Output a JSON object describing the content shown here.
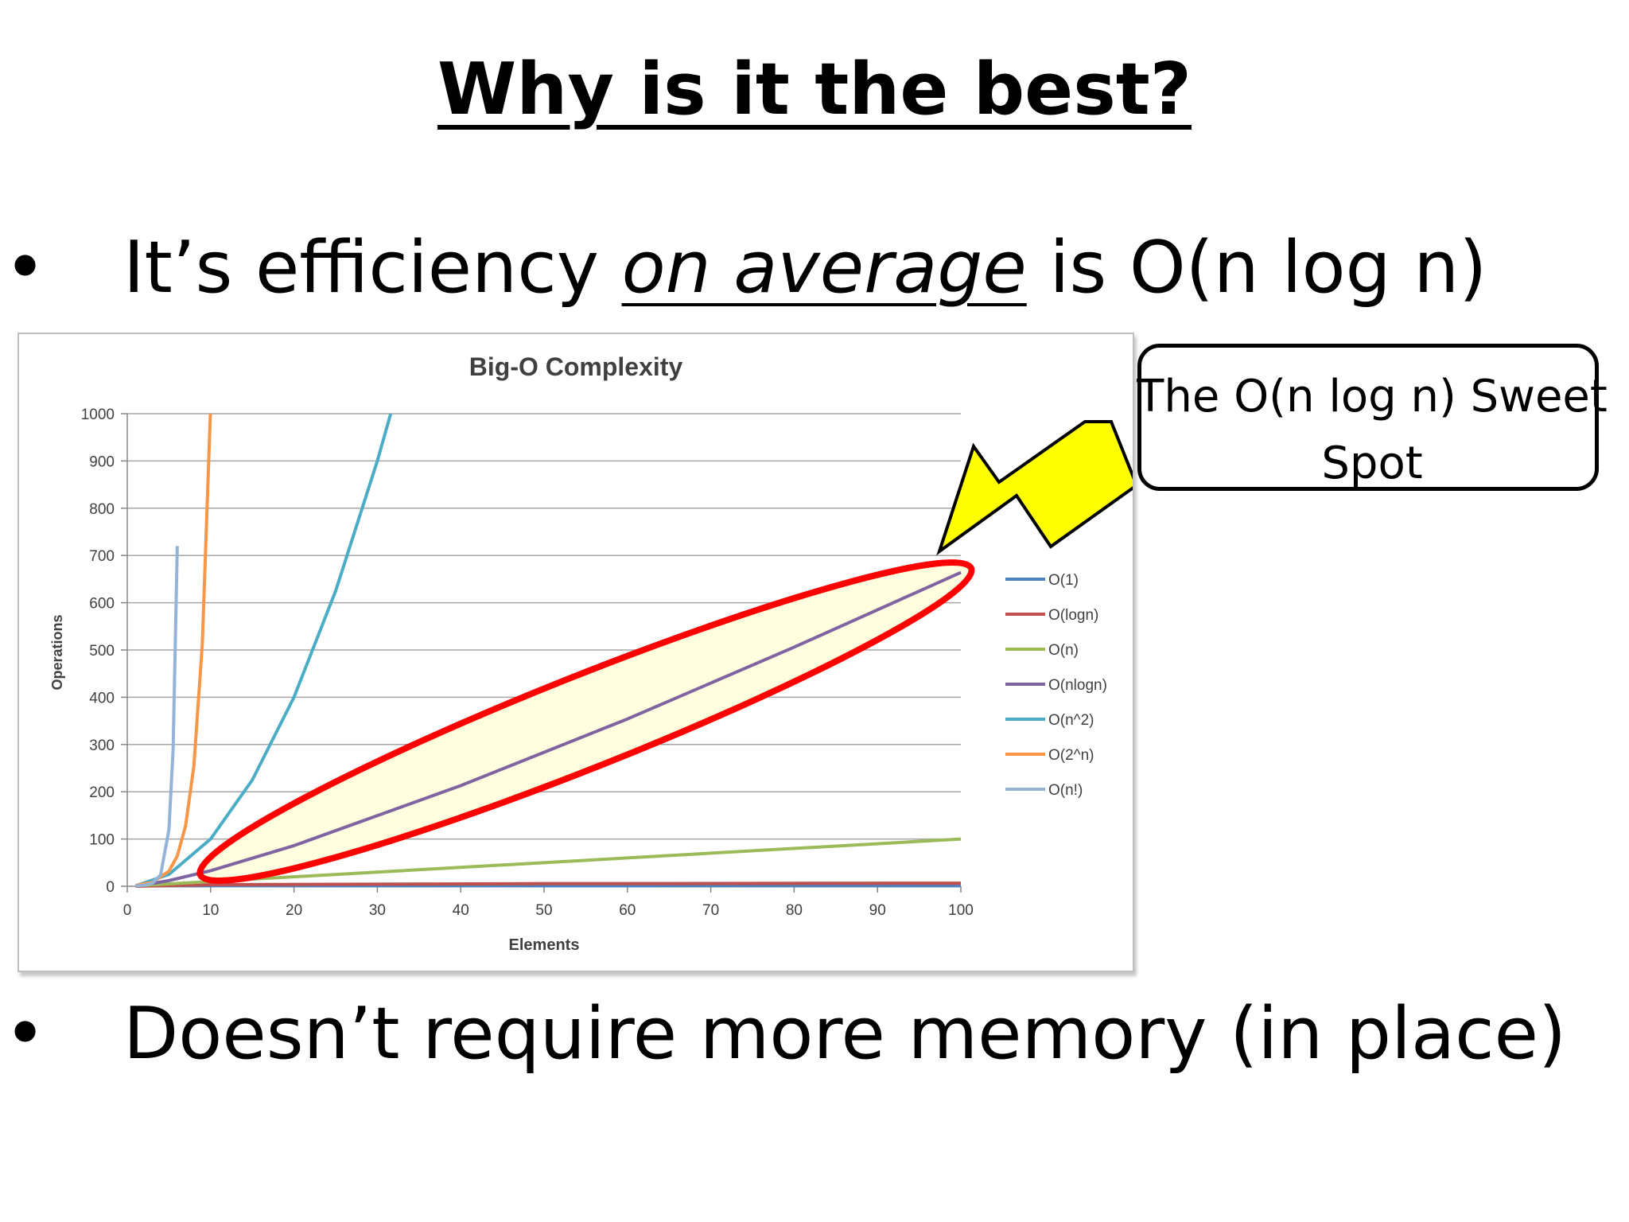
{
  "slide": {
    "title": "Why is it the best?",
    "bullet1": {
      "before": "It’s efficiency ",
      "emphasis": "on average",
      "after": " is O(n log n)"
    },
    "bullet2": "Doesn’t require more memory (in place)",
    "bullet_symbol": "•"
  },
  "callout": {
    "text": "The O(n log n) Sweet Spot"
  },
  "chart_data": {
    "type": "line",
    "title": "Big-O Complexity",
    "xlabel": "Elements",
    "ylabel": "Operations",
    "xlim": [
      0,
      100
    ],
    "ylim": [
      0,
      1000
    ],
    "xticks": [
      "0",
      "10",
      "20",
      "30",
      "40",
      "50",
      "60",
      "70",
      "80",
      "90",
      "100"
    ],
    "yticks": [
      "0",
      "100",
      "200",
      "300",
      "400",
      "500",
      "600",
      "700",
      "800",
      "900",
      "1000"
    ],
    "grid": "horizontal",
    "legend_position": "right",
    "series": [
      {
        "name": "O(1)",
        "color": "#4f81bd",
        "x": [
          1,
          100
        ],
        "y": [
          1,
          1
        ]
      },
      {
        "name": "O(logn)",
        "color": "#c0504d",
        "x": [
          1,
          10,
          50,
          100
        ],
        "y": [
          0,
          3.3,
          5.6,
          6.6
        ]
      },
      {
        "name": "O(n)",
        "color": "#9bbb59",
        "x": [
          1,
          100
        ],
        "y": [
          1,
          100
        ]
      },
      {
        "name": "O(nlogn)",
        "color": "#8064a2",
        "x": [
          1,
          5,
          10,
          20,
          40,
          60,
          80,
          100
        ],
        "y": [
          0,
          12,
          33,
          86,
          213,
          354,
          506,
          664
        ]
      },
      {
        "name": "O(n^2)",
        "color": "#4bacc6",
        "x": [
          1,
          5,
          10,
          15,
          20,
          25,
          30,
          31.6
        ],
        "y": [
          1,
          25,
          100,
          225,
          400,
          625,
          900,
          1000
        ]
      },
      {
        "name": "O(2^n)",
        "color": "#f79646",
        "x": [
          1,
          3,
          5,
          6,
          7,
          8,
          9,
          9.97
        ],
        "y": [
          2,
          8,
          32,
          64,
          128,
          256,
          512,
          1000
        ]
      },
      {
        "name": "O(n!)",
        "color": "#95b3d7",
        "x": [
          1,
          2,
          3,
          4,
          5,
          5.5,
          6
        ],
        "y": [
          1,
          2,
          6,
          24,
          120,
          290,
          720
        ]
      }
    ],
    "annotation": {
      "type": "ellipse",
      "color": "#ff0000",
      "fill": "#ffffe0",
      "around_series": "O(nlogn)",
      "x_range": [
        10,
        100
      ]
    }
  }
}
